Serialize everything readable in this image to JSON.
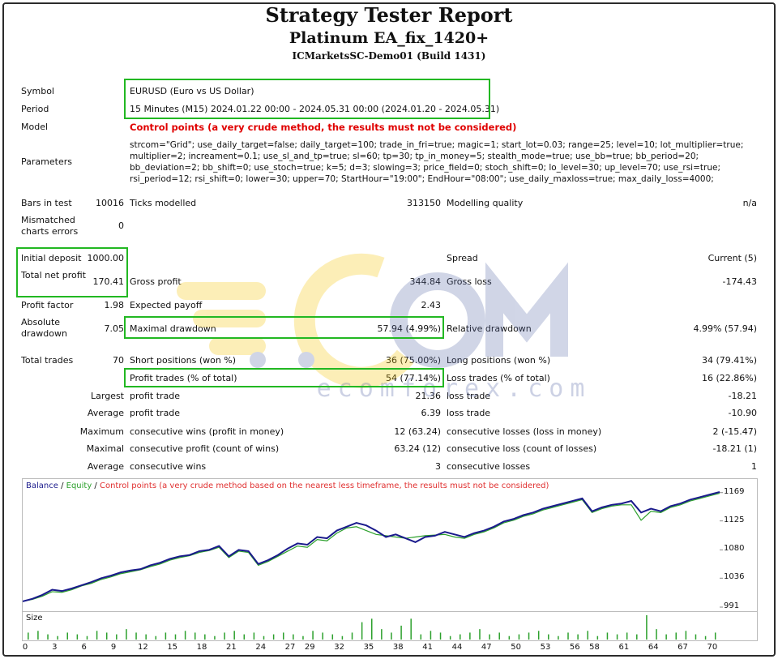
{
  "report": {
    "title": "Strategy Tester Report",
    "ea_name": "Platinum EA_fix_1420+",
    "account": "ICMarketsSC-Demo01 (Build 1431)"
  },
  "summary": {
    "symbol_label": "Symbol",
    "symbol_value": "EURUSD (Euro vs US Dollar)",
    "period_label": "Period",
    "period_value": "15 Minutes (M15) 2024.01.22 00:00 - 2024.05.31 00:00 (2024.01.20 - 2024.05.31)",
    "model_label": "Model",
    "model_value": "Control points (a very crude method, the results must not be considered)",
    "parameters_label": "Parameters",
    "parameters_value": "strcom=\"Grid\"; use_daily_target=false; daily_target=100; trade_in_fri=true; magic=1; start_lot=0.03; range=25; level=10; lot_multiplier=true; multiplier=2; increament=0.1; use_sl_and_tp=true; sl=60; tp=30; tp_in_money=5; stealth_mode=true; use_bb=true; bb_period=20; bb_deviation=2; bb_shift=0; use_stoch=true; k=5; d=3; slowing=3; price_field=0; stoch_shift=0; lo_level=30; up_level=70; use_rsi=true; rsi_period=12; rsi_shift=0; lower=30; upper=70; StartHour=\"19:00\"; EndHour=\"08:00\"; use_daily_maxloss=true; max_daily_loss=4000;"
  },
  "stats": {
    "bars_label": "Bars in test",
    "bars_value": "10016",
    "ticks_label": "Ticks modelled",
    "ticks_value": "313150",
    "quality_label": "Modelling quality",
    "quality_value": "n/a",
    "mismatch_label": "Mismatched charts errors",
    "mismatch_value": "0",
    "deposit_label": "Initial deposit",
    "deposit_value": "1000.00",
    "spread_label": "Spread",
    "spread_value": "Current (5)",
    "netprofit_label": "Total net profit",
    "netprofit_value": "170.41",
    "grossprofit_label": "Gross profit",
    "grossprofit_value": "344.84",
    "grossloss_label": "Gross loss",
    "grossloss_value": "-174.43",
    "pf_label": "Profit factor",
    "pf_value": "1.98",
    "payoff_label": "Expected payoff",
    "payoff_value": "2.43",
    "absdd_label": "Absolute drawdown",
    "absdd_value": "7.05",
    "maxdd_label": "Maximal drawdown",
    "maxdd_value": "57.94 (4.99%)",
    "reldd_label": "Relative drawdown",
    "reldd_value": "4.99% (57.94)",
    "trades_label": "Total trades",
    "trades_value": "70",
    "short_label": "Short positions (won %)",
    "short_value": "36 (75.00%)",
    "long_label": "Long positions (won %)",
    "long_value": "34 (79.41%)",
    "ptrades_label": "Profit trades (% of total)",
    "ptrades_value": "54 (77.14%)",
    "ltrades_label": "Loss trades (% of total)",
    "ltrades_value": "16 (22.86%)",
    "largest_label": "Largest",
    "lp_label": "profit trade",
    "lp_value": "21.36",
    "ll_label": "loss trade",
    "ll_value": "-18.21",
    "average_label": "Average",
    "ap_label": "profit trade",
    "ap_value": "6.39",
    "al_label": "loss trade",
    "al_value": "-10.90",
    "maximum_label": "Maximum",
    "mcw_label": "consecutive wins (profit in money)",
    "mcw_value": "12 (63.24)",
    "mcl_label": "consecutive losses (loss in money)",
    "mcl_value": "2 (-15.47)",
    "maximal_label": "Maximal",
    "mcp_label": "consecutive profit (count of wins)",
    "mcp_value": "63.24 (12)",
    "mcls_label": "consecutive loss (count of losses)",
    "mcls_value": "-18.21 (1)",
    "average2_label": "Average",
    "acw_label": "consecutive wins",
    "acw_value": "3",
    "acl_label": "consecutive losses",
    "acl_value": "1"
  },
  "watermark": {
    "text": "ecomforex.com"
  },
  "chart_data": {
    "type": "line",
    "legend": {
      "balance": "Balance",
      "sep1": " / ",
      "equity": "Equity",
      "sep2": " / ",
      "note": "Control points (a very crude method based on the nearest less timeframe, the results must not be considered)"
    },
    "colors": {
      "balance": "#1a1a8c",
      "equity": "#2ca02c",
      "note": "#e03030",
      "volume": "#2ca02c"
    },
    "ylim": [
      991,
      1180
    ],
    "y_ticks": [
      "1169",
      "1125",
      "1080",
      "1036",
      "991"
    ],
    "x_ticks": [
      "0",
      "3",
      "6",
      "9",
      "12",
      "15",
      "18",
      "21",
      "24",
      "27",
      "29",
      "32",
      "35",
      "38",
      "41",
      "44",
      "47",
      "50",
      "53",
      "56",
      "58",
      "61",
      "64",
      "67",
      "70"
    ],
    "x_range": [
      0,
      71
    ],
    "volume_label": "Size",
    "balance": [
      [
        0,
        1000
      ],
      [
        1,
        1004
      ],
      [
        2,
        1010
      ],
      [
        3,
        1018
      ],
      [
        4,
        1016
      ],
      [
        5,
        1020
      ],
      [
        6,
        1025
      ],
      [
        7,
        1030
      ],
      [
        8,
        1036
      ],
      [
        9,
        1040
      ],
      [
        10,
        1045
      ],
      [
        11,
        1048
      ],
      [
        12,
        1050
      ],
      [
        13,
        1056
      ],
      [
        14,
        1060
      ],
      [
        15,
        1066
      ],
      [
        16,
        1070
      ],
      [
        17,
        1072
      ],
      [
        18,
        1078
      ],
      [
        19,
        1080
      ],
      [
        20,
        1086
      ],
      [
        21,
        1070
      ],
      [
        22,
        1080
      ],
      [
        23,
        1078
      ],
      [
        24,
        1058
      ],
      [
        25,
        1064
      ],
      [
        26,
        1072
      ],
      [
        27,
        1082
      ],
      [
        28,
        1090
      ],
      [
        29,
        1088
      ],
      [
        30,
        1100
      ],
      [
        31,
        1098
      ],
      [
        32,
        1110
      ],
      [
        33,
        1116
      ],
      [
        34,
        1122
      ],
      [
        35,
        1118
      ],
      [
        36,
        1110
      ],
      [
        37,
        1100
      ],
      [
        38,
        1104
      ],
      [
        39,
        1098
      ],
      [
        40,
        1092
      ],
      [
        41,
        1100
      ],
      [
        42,
        1102
      ],
      [
        43,
        1108
      ],
      [
        44,
        1104
      ],
      [
        45,
        1100
      ],
      [
        46,
        1106
      ],
      [
        47,
        1110
      ],
      [
        48,
        1116
      ],
      [
        49,
        1124
      ],
      [
        50,
        1128
      ],
      [
        51,
        1134
      ],
      [
        52,
        1138
      ],
      [
        53,
        1144
      ],
      [
        54,
        1148
      ],
      [
        55,
        1152
      ],
      [
        56,
        1156
      ],
      [
        57,
        1160
      ],
      [
        58,
        1140
      ],
      [
        59,
        1146
      ],
      [
        60,
        1150
      ],
      [
        61,
        1152
      ],
      [
        62,
        1156
      ],
      [
        63,
        1138
      ],
      [
        64,
        1144
      ],
      [
        65,
        1140
      ],
      [
        66,
        1148
      ],
      [
        67,
        1152
      ],
      [
        68,
        1158
      ],
      [
        69,
        1162
      ],
      [
        70,
        1166
      ],
      [
        71,
        1170
      ]
    ],
    "equity": [
      [
        0,
        1000
      ],
      [
        1,
        1003
      ],
      [
        2,
        1008
      ],
      [
        3,
        1015
      ],
      [
        4,
        1014
      ],
      [
        5,
        1018
      ],
      [
        6,
        1024
      ],
      [
        7,
        1028
      ],
      [
        8,
        1034
      ],
      [
        9,
        1038
      ],
      [
        10,
        1043
      ],
      [
        11,
        1046
      ],
      [
        12,
        1049
      ],
      [
        13,
        1054
      ],
      [
        14,
        1058
      ],
      [
        15,
        1064
      ],
      [
        16,
        1068
      ],
      [
        17,
        1071
      ],
      [
        18,
        1076
      ],
      [
        19,
        1079
      ],
      [
        20,
        1084
      ],
      [
        21,
        1068
      ],
      [
        22,
        1078
      ],
      [
        23,
        1076
      ],
      [
        24,
        1056
      ],
      [
        25,
        1062
      ],
      [
        26,
        1070
      ],
      [
        27,
        1078
      ],
      [
        28,
        1086
      ],
      [
        29,
        1084
      ],
      [
        30,
        1096
      ],
      [
        31,
        1094
      ],
      [
        32,
        1106
      ],
      [
        33,
        1114
      ],
      [
        34,
        1116
      ],
      [
        35,
        1110
      ],
      [
        36,
        1104
      ],
      [
        37,
        1102
      ],
      [
        38,
        1100
      ],
      [
        39,
        1098
      ],
      [
        40,
        1100
      ],
      [
        41,
        1102
      ],
      [
        42,
        1103
      ],
      [
        43,
        1104
      ],
      [
        44,
        1100
      ],
      [
        45,
        1098
      ],
      [
        46,
        1104
      ],
      [
        47,
        1108
      ],
      [
        48,
        1114
      ],
      [
        49,
        1122
      ],
      [
        50,
        1126
      ],
      [
        51,
        1132
      ],
      [
        52,
        1136
      ],
      [
        53,
        1142
      ],
      [
        54,
        1146
      ],
      [
        55,
        1150
      ],
      [
        56,
        1154
      ],
      [
        57,
        1158
      ],
      [
        58,
        1138
      ],
      [
        59,
        1144
      ],
      [
        60,
        1148
      ],
      [
        61,
        1150
      ],
      [
        62,
        1150
      ],
      [
        63,
        1126
      ],
      [
        64,
        1140
      ],
      [
        65,
        1138
      ],
      [
        66,
        1146
      ],
      [
        67,
        1150
      ],
      [
        68,
        1156
      ],
      [
        69,
        1160
      ],
      [
        70,
        1164
      ],
      [
        71,
        1168
      ]
    ],
    "volume": [
      4,
      5,
      3,
      2,
      4,
      3,
      2,
      5,
      4,
      3,
      6,
      4,
      3,
      2,
      4,
      3,
      5,
      4,
      3,
      2,
      4,
      5,
      3,
      4,
      2,
      3,
      4,
      3,
      2,
      5,
      4,
      3,
      2,
      4,
      10,
      12,
      6,
      4,
      8,
      12,
      3,
      5,
      4,
      2,
      3,
      4,
      6,
      3,
      4,
      2,
      3,
      4,
      5,
      3,
      2,
      4,
      3,
      5,
      2,
      4,
      3,
      4,
      3,
      14,
      6,
      3,
      4,
      5,
      3,
      2,
      4
    ]
  }
}
